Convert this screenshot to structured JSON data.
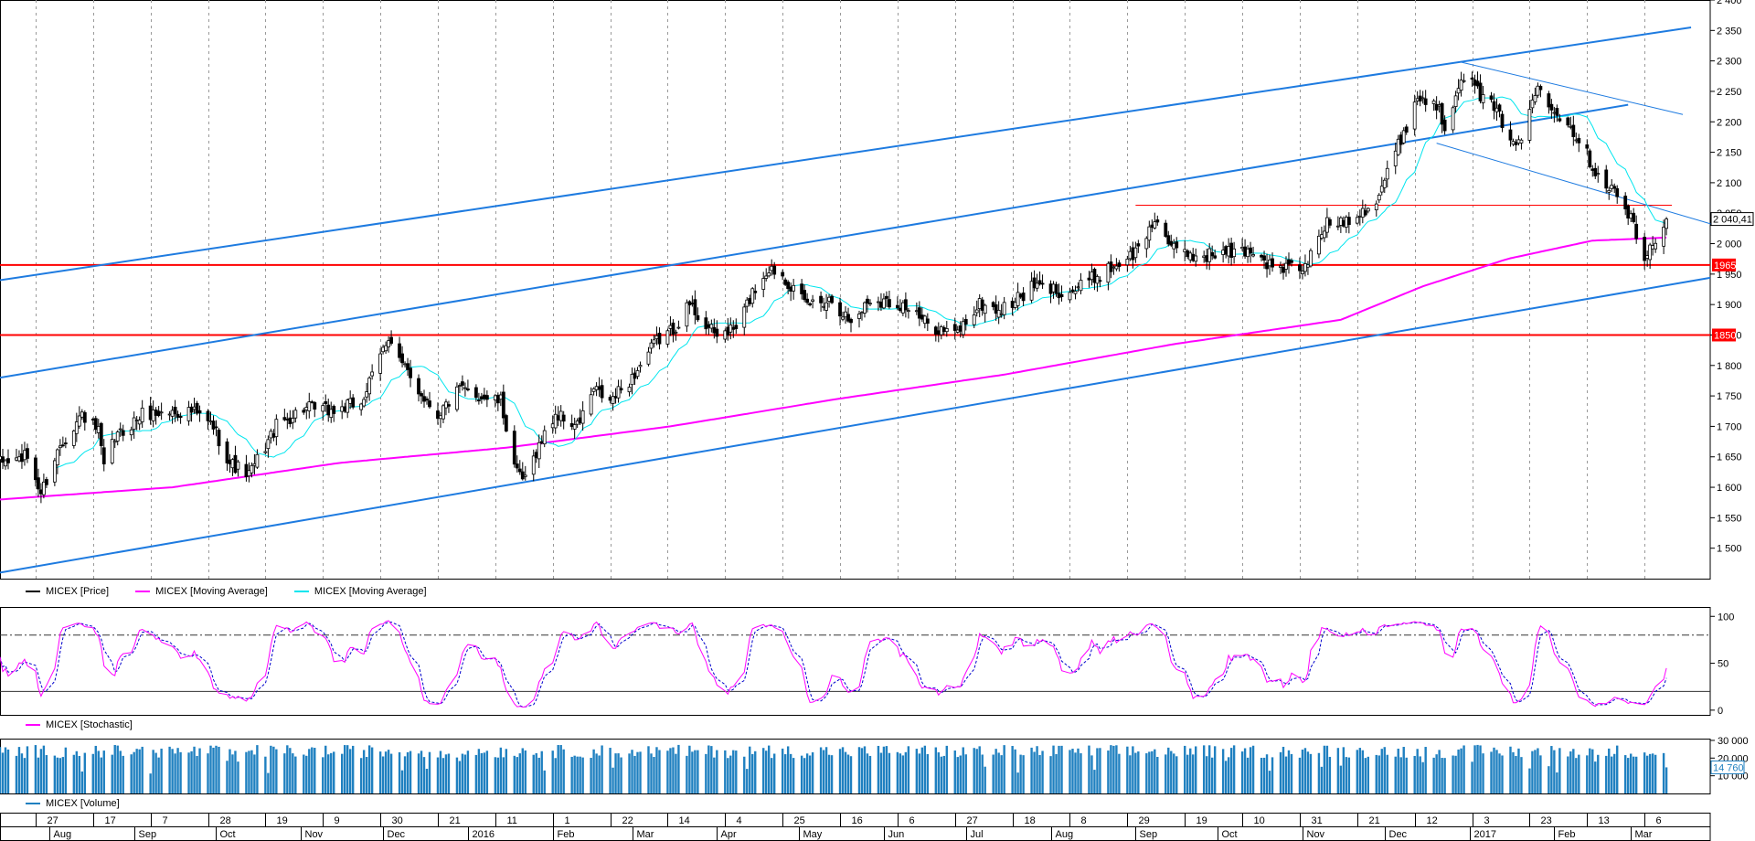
{
  "colors": {
    "price": "#000000",
    "ma_long": "#ff00ff",
    "ma_short": "#00e5ee",
    "trend": "#1e7be0",
    "support": "#ff0000",
    "stoch_k": "#ff00ff",
    "stoch_d": "#0000cc",
    "volume": "#1f80c0",
    "grid": "#9a9a9a"
  },
  "legends": {
    "price": [
      {
        "label": "MICEX [Price]",
        "color": "#000000"
      },
      {
        "label": "MICEX [Moving Average]",
        "color": "#ff00ff"
      },
      {
        "label": "MICEX [Moving Average]",
        "color": "#00e5ee"
      }
    ],
    "stochastic": [
      {
        "label": "MICEX [Stochastic]",
        "color": "#ff00ff"
      }
    ],
    "volume": [
      {
        "label": "MICEX [Volume]",
        "color": "#1f80c0"
      }
    ]
  },
  "chart_data": [
    {
      "type": "candlestick",
      "title": "",
      "ylim": [
        1450,
        2400
      ],
      "yticks": [
        "1 500",
        "1 550",
        "1 600",
        "1 650",
        "1 700",
        "1 750",
        "1 800",
        "1 850",
        "1 900",
        "1 950",
        "2 000",
        "2 050",
        "2 100",
        "2 150",
        "2 200",
        "2 250",
        "2 300",
        "2 350",
        "2 400"
      ],
      "last_price_label": "2 040,41",
      "last_price": 2040.41,
      "support_levels": [
        {
          "label": "1965",
          "value": 1965
        },
        {
          "label": "1850",
          "value": 1850
        }
      ],
      "resistance_level": 2063,
      "trendlines": [
        {
          "from": [
            "2015-07-14",
            1940
          ],
          "to": [
            "2017-03-23",
            2355
          ]
        },
        {
          "from": [
            "2015-07-14",
            1780
          ],
          "to": [
            "2017-02-28",
            2228
          ]
        },
        {
          "from": [
            "2015-07-14",
            1460
          ],
          "to": [
            "2017-03-30",
            1944
          ]
        },
        {
          "from": [
            "2016-12-29",
            2298
          ],
          "to": [
            "2017-03-20",
            2212
          ]
        },
        {
          "from": [
            "2016-12-20",
            2165
          ],
          "to": [
            "2017-04-01",
            2030
          ]
        }
      ],
      "close_anchors": [
        [
          "2015-07-14",
          1640
        ],
        [
          "2015-07-24",
          1650
        ],
        [
          "2015-07-29",
          1590
        ],
        [
          "2015-08-05",
          1670
        ],
        [
          "2015-08-13",
          1720
        ],
        [
          "2015-08-19",
          1690
        ],
        [
          "2015-08-21",
          1630
        ],
        [
          "2015-08-25",
          1680
        ],
        [
          "2015-09-04",
          1720
        ],
        [
          "2015-09-22",
          1725
        ],
        [
          "2015-09-30",
          1700
        ],
        [
          "2015-10-06",
          1640
        ],
        [
          "2015-10-13",
          1620
        ],
        [
          "2015-10-23",
          1700
        ],
        [
          "2015-11-02",
          1730
        ],
        [
          "2015-11-13",
          1725
        ],
        [
          "2015-11-23",
          1740
        ],
        [
          "2015-11-27",
          1780
        ],
        [
          "2015-12-03",
          1850
        ],
        [
          "2015-12-08",
          1800
        ],
        [
          "2015-12-14",
          1760
        ],
        [
          "2015-12-21",
          1720
        ],
        [
          "2015-12-29",
          1760
        ],
        [
          "2016-01-13",
          1740
        ],
        [
          "2016-01-19",
          1620
        ],
        [
          "2016-01-22",
          1610
        ],
        [
          "2016-01-26",
          1660
        ],
        [
          "2016-02-02",
          1720
        ],
        [
          "2016-02-10",
          1700
        ],
        [
          "2016-02-16",
          1760
        ],
        [
          "2016-02-22",
          1740
        ],
        [
          "2016-03-01",
          1780
        ],
        [
          "2016-03-10",
          1840
        ],
        [
          "2016-03-16",
          1860
        ],
        [
          "2016-03-22",
          1900
        ],
        [
          "2016-03-31",
          1850
        ],
        [
          "2016-04-08",
          1860
        ],
        [
          "2016-04-14",
          1920
        ],
        [
          "2016-04-20",
          1960
        ],
        [
          "2016-04-25",
          1950
        ],
        [
          "2016-05-03",
          1900
        ],
        [
          "2016-05-13",
          1910
        ],
        [
          "2016-05-20",
          1870
        ],
        [
          "2016-05-27",
          1910
        ],
        [
          "2016-06-08",
          1900
        ],
        [
          "2016-06-16",
          1870
        ],
        [
          "2016-06-27",
          1850
        ],
        [
          "2016-07-06",
          1900
        ],
        [
          "2016-07-14",
          1890
        ],
        [
          "2016-07-26",
          1930
        ],
        [
          "2016-08-08",
          1920
        ],
        [
          "2016-08-19",
          1950
        ],
        [
          "2016-09-01",
          1985
        ],
        [
          "2016-09-09",
          2045
        ],
        [
          "2016-09-14",
          1990
        ],
        [
          "2016-09-22",
          1980
        ],
        [
          "2016-10-06",
          1985
        ],
        [
          "2016-10-14",
          1990
        ],
        [
          "2016-10-21",
          1960
        ],
        [
          "2016-11-02",
          1960
        ],
        [
          "2016-11-09",
          2030
        ],
        [
          "2016-11-17",
          2040
        ],
        [
          "2016-11-28",
          2070
        ],
        [
          "2016-12-05",
          2150
        ],
        [
          "2016-12-13",
          2240
        ],
        [
          "2016-12-20",
          2230
        ],
        [
          "2016-12-23",
          2190
        ],
        [
          "2016-12-29",
          2280
        ],
        [
          "2017-01-10",
          2220
        ],
        [
          "2017-01-19",
          2160
        ],
        [
          "2017-01-26",
          2260
        ],
        [
          "2017-01-31",
          2230
        ],
        [
          "2017-02-09",
          2180
        ],
        [
          "2017-02-16",
          2120
        ],
        [
          "2017-02-24",
          2080
        ],
        [
          "2017-03-01",
          2040
        ],
        [
          "2017-03-06",
          1970
        ],
        [
          "2017-03-10",
          2010
        ],
        [
          "2017-03-14",
          2040
        ]
      ],
      "ma_long_anchors": [
        [
          "2015-07-14",
          1580
        ],
        [
          "2015-09-15",
          1600
        ],
        [
          "2015-11-15",
          1640
        ],
        [
          "2016-01-15",
          1665
        ],
        [
          "2016-03-15",
          1700
        ],
        [
          "2016-05-15",
          1745
        ],
        [
          "2016-07-15",
          1785
        ],
        [
          "2016-09-15",
          1835
        ],
        [
          "2016-11-15",
          1875
        ],
        [
          "2016-12-15",
          1930
        ],
        [
          "2017-01-15",
          1975
        ],
        [
          "2017-02-15",
          2005
        ],
        [
          "2017-03-14",
          2010
        ]
      ]
    },
    {
      "type": "line",
      "title": "",
      "ylim": [
        -5,
        110
      ],
      "yticks": [
        "0",
        "50",
        "100"
      ],
      "levels": [
        20,
        80
      ],
      "series": [
        {
          "name": "MICEX [Stochastic]"
        }
      ]
    },
    {
      "type": "bar",
      "title": "",
      "ylim": [
        0,
        31000
      ],
      "yticks": [
        "10 000",
        "20 000",
        "30 000"
      ],
      "last_volume_label": "14 760",
      "last_volume": 14760,
      "series": [
        {
          "name": "MICEX [Volume]"
        }
      ]
    }
  ],
  "x_axis": {
    "start": "2015-07-14",
    "end": "2017-03-30",
    "day_labels": [
      [
        "2015-07-27",
        "27"
      ],
      [
        "2015-08-17",
        "17"
      ],
      [
        "2015-09-07",
        "7"
      ],
      [
        "2015-09-28",
        "28"
      ],
      [
        "2015-10-19",
        "19"
      ],
      [
        "2015-11-09",
        "9"
      ],
      [
        "2015-11-30",
        "30"
      ],
      [
        "2015-12-21",
        "21"
      ],
      [
        "2016-01-11",
        "11"
      ],
      [
        "2016-02-01",
        "1"
      ],
      [
        "2016-02-22",
        "22"
      ],
      [
        "2016-03-14",
        "14"
      ],
      [
        "2016-04-04",
        "4"
      ],
      [
        "2016-04-25",
        "25"
      ],
      [
        "2016-05-16",
        "16"
      ],
      [
        "2016-06-06",
        "6"
      ],
      [
        "2016-06-27",
        "27"
      ],
      [
        "2016-07-18",
        "18"
      ],
      [
        "2016-08-08",
        "8"
      ],
      [
        "2016-08-29",
        "29"
      ],
      [
        "2016-09-19",
        "19"
      ],
      [
        "2016-10-10",
        "10"
      ],
      [
        "2016-10-31",
        "31"
      ],
      [
        "2016-11-21",
        "21"
      ],
      [
        "2016-12-12",
        "12"
      ],
      [
        "2017-01-02",
        "3"
      ],
      [
        "2017-01-23",
        "23"
      ],
      [
        "2017-02-13",
        "13"
      ],
      [
        "2017-03-06",
        "6"
      ]
    ],
    "month_labels": [
      [
        "2015-08-01",
        "Aug"
      ],
      [
        "2015-09-01",
        "Sep"
      ],
      [
        "2015-10-01",
        "Oct"
      ],
      [
        "2015-11-01",
        "Nov"
      ],
      [
        "2015-12-01",
        "Dec"
      ],
      [
        "2016-01-01",
        "2016"
      ],
      [
        "2016-02-01",
        "Feb"
      ],
      [
        "2016-03-01",
        "Mar"
      ],
      [
        "2016-04-01",
        "Apr"
      ],
      [
        "2016-05-01",
        "May"
      ],
      [
        "2016-06-01",
        "Jun"
      ],
      [
        "2016-07-01",
        "Jul"
      ],
      [
        "2016-08-01",
        "Aug"
      ],
      [
        "2016-09-01",
        "Sep"
      ],
      [
        "2016-10-01",
        "Oct"
      ],
      [
        "2016-11-01",
        "Nov"
      ],
      [
        "2016-12-01",
        "Dec"
      ],
      [
        "2017-01-01",
        "2017"
      ],
      [
        "2017-02-01",
        "Feb"
      ],
      [
        "2017-03-01",
        "Mar"
      ]
    ]
  }
}
